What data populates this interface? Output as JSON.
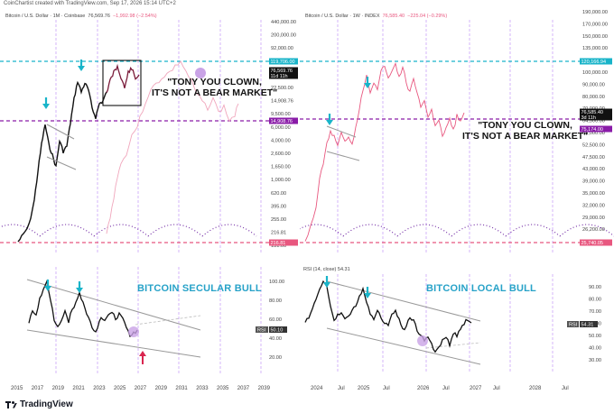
{
  "header": {
    "text": "CoinChartist created with TradingView.com, Sep 17, 2026 15:14 UTC+2"
  },
  "colors": {
    "cyan": "#19b4c9",
    "purple": "#8a1ca8",
    "pink": "#e8577f",
    "violet": "#b785f5",
    "black": "#111111",
    "light_pink": "#f0a6bc",
    "title_blue": "#27a2c8"
  },
  "pane_tl": {
    "title_main": "Bitcoin / U.S. Dollar · 1M · Coinbase",
    "title_price": "76,569.76",
    "title_change": "−1,992.98 (−2.54%)",
    "callout_line1": "\"TONY YOU CLOWN,",
    "callout_line2": "IT'S NOT A BEAR MARKET\"",
    "yaxis": [
      "440,000.00",
      "200,000.00",
      "92,000.00",
      "52,000.00",
      "34,500.00",
      "22,500.00",
      "14,908.76",
      "9,500.00",
      "6,000.00",
      "4,000.00",
      "2,600.00",
      "1,650.00",
      "1,000.00",
      "620.00",
      "395.00",
      "255.00",
      "216.81",
      "131.00"
    ],
    "price_tag": "76,569.76",
    "price_tag_sub": "11d 11h",
    "cyan_tag": "119,706.00",
    "purple_tag": "14,908.76",
    "pink_tag": "216.81"
  },
  "pane_tr": {
    "title_main": "Bitcoin / U.S. Dollar · 1W · INDEX",
    "title_price": "76,585.40",
    "title_change": "−225.04 (−0.29%)",
    "callout_line1": "\"TONY YOU CLOWN,",
    "callout_line2": "IT'S NOT A BEAR MARKET\"",
    "yaxis": [
      "190,000.00",
      "170,000.00",
      "150,000.00",
      "135,000.00",
      "110,000.00",
      "100,000.00",
      "90,000.00",
      "80,000.00",
      "70,000.00",
      "64,500.00",
      "58,000.00",
      "52,500.00",
      "47,500.00",
      "43,000.00",
      "39,000.00",
      "35,000.00",
      "32,000.00",
      "29,000.00",
      "26,200.00",
      "24,200.00"
    ],
    "price_tag": "76,585.40",
    "price_tag_sub": "3d 11h",
    "cyan_tag": "120,166.94",
    "purple_tag": "75,174.00",
    "pink_tag": "25,740.05"
  },
  "pane_bl": {
    "title": "BITCOIN SECULAR BULL",
    "yaxis": [
      "100.00",
      "80.00",
      "60.00",
      "40.00",
      "20.00"
    ],
    "rsi_label": "RSI",
    "rsi_value": "50.10"
  },
  "pane_br": {
    "title": "BITCOIN LOCAL BULL",
    "rsi_header_label": "RSI (14, close)",
    "rsi_header_value": "54.31",
    "yaxis": [
      "90.00",
      "80.00",
      "70.00",
      "60.00",
      "50.00",
      "40.00",
      "30.00"
    ],
    "rsi_label": "RSI",
    "rsi_value": "54.31"
  },
  "xaxis_left": [
    "2015",
    "2017",
    "2019",
    "2021",
    "2023",
    "2025",
    "2027",
    "2029",
    "2031",
    "2033",
    "2035",
    "2037",
    "2039"
  ],
  "xaxis_right": [
    "2024",
    "Jul",
    "2025",
    "Jul",
    "2026",
    "Jul",
    "2027",
    "Jul",
    "2028",
    "Jul"
  ],
  "footer": {
    "brand": "TradingView"
  },
  "chart_data": [
    {
      "type": "line",
      "title": "Bitcoin / U.S. Dollar · 1M · Coinbase",
      "x": [
        "2015",
        "2016",
        "2017",
        "2017.9",
        "2018.5",
        "2019",
        "2020",
        "2021",
        "2021.9",
        "2022.9",
        "2023.5",
        "2024",
        "2024.9",
        "2025.8",
        "2026.7"
      ],
      "series": [
        {
          "values": [
            250,
            400,
            1000,
            14000,
            6500,
            3500,
            7000,
            30000,
            65000,
            16000,
            30000,
            42000,
            100000,
            120000,
            76570
          ]
        }
      ],
      "ylim": [
        131,
        440000
      ],
      "scale": "log",
      "horizontal_levels": [
        119706,
        14908.76,
        216.81
      ]
    },
    {
      "type": "line",
      "title": "Bitcoin / U.S. Dollar · 1W · INDEX",
      "x": [
        "2023.8",
        "2024.2",
        "2024.5",
        "2024.9",
        "2025.3",
        "2025.8",
        "2026.2",
        "2026.5",
        "2026.7"
      ],
      "series": [
        {
          "values": [
            27000,
            68000,
            58000,
            100000,
            78000,
            115000,
            75000,
            62000,
            76585
          ]
        }
      ],
      "ylim": [
        24200,
        190000
      ],
      "horizontal_levels": [
        120166.94,
        75174,
        25740.05
      ]
    },
    {
      "type": "line",
      "title": "BITCOIN SECULAR BULL",
      "x": [
        "2015",
        "2016",
        "2017",
        "2017.9",
        "2018.8",
        "2019.5",
        "2020",
        "2021",
        "2022",
        "2022.9",
        "2024",
        "2025",
        "2026",
        "2026.7"
      ],
      "series": [
        {
          "name": "RSI",
          "values": [
            38,
            60,
            82,
            95,
            42,
            68,
            55,
            92,
            58,
            35,
            70,
            72,
            45,
            50.1
          ]
        }
      ],
      "ylim": [
        10,
        110
      ]
    },
    {
      "type": "line",
      "title": "BITCOIN LOCAL BULL",
      "x": [
        "2023.8",
        "2024.2",
        "2024.6",
        "2024.9",
        "2025.3",
        "2025.6",
        "2026.0",
        "2026.3",
        "2026.5",
        "2026.7"
      ],
      "series": [
        {
          "name": "RSI (14, close)",
          "values": [
            55,
            90,
            50,
            82,
            45,
            60,
            35,
            40,
            58,
            54.31
          ]
        }
      ],
      "ylim": [
        20,
        100
      ]
    }
  ]
}
